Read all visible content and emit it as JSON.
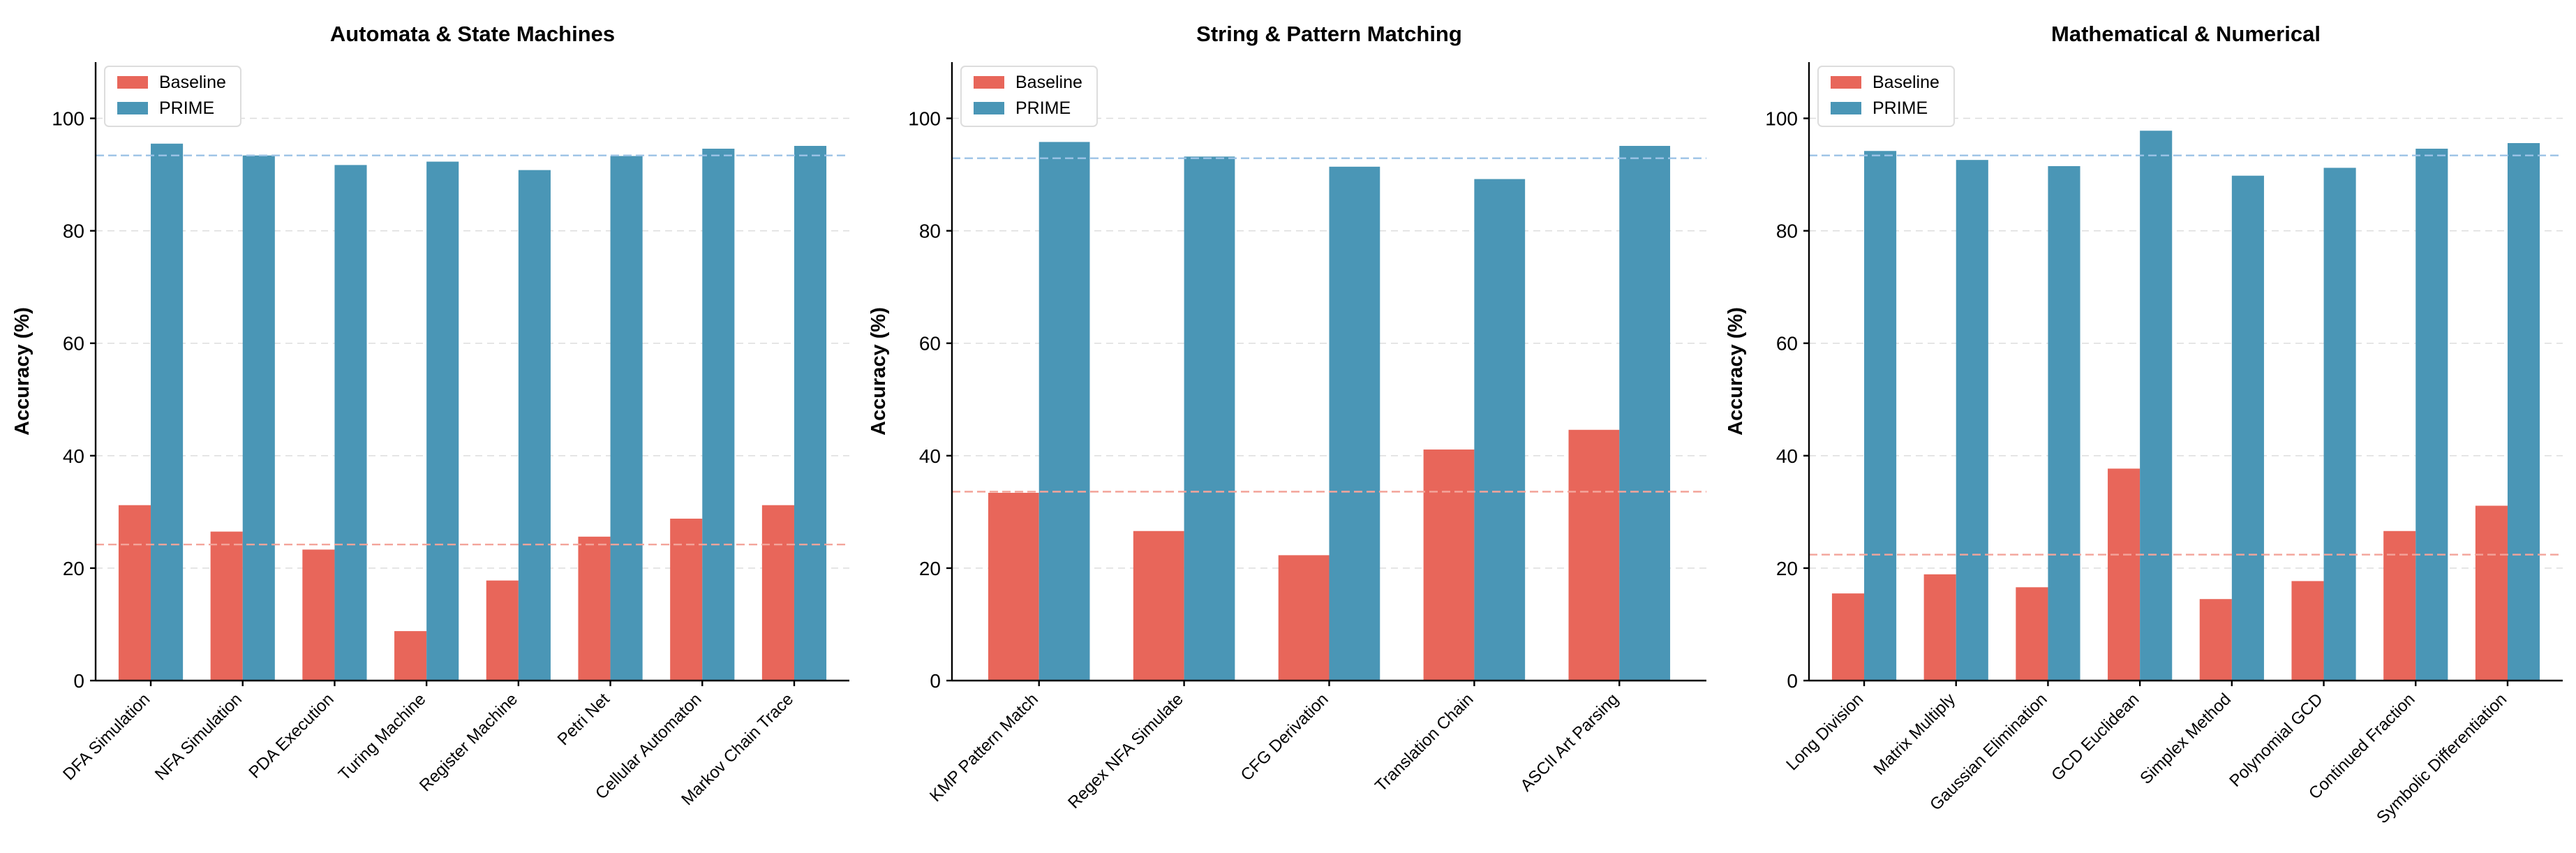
{
  "colors": {
    "baseline": "#e8665a",
    "prime": "#4a96b6",
    "baseline_ref": "#f3a49a",
    "prime_ref": "#9cc3e6"
  },
  "chart_data": [
    {
      "type": "bar",
      "title": "Automata & State Machines",
      "ylabel": "Accuracy (%)",
      "xlabel": "",
      "ylim": [
        0,
        110
      ],
      "yticks": [
        0,
        20,
        40,
        60,
        80,
        100
      ],
      "grid": true,
      "legend": "top-left",
      "categories": [
        "DFA Simulation",
        "NFA Simulation",
        "PDA Execution",
        "Turing Machine",
        "Register Machine",
        "Petri Net",
        "Cellular Automaton",
        "Markov Chain Trace"
      ],
      "series": [
        {
          "name": "Baseline",
          "values": [
            31.2,
            26.5,
            23.3,
            8.8,
            17.8,
            25.6,
            28.8,
            31.2
          ]
        },
        {
          "name": "PRIME",
          "values": [
            95.5,
            93.4,
            91.7,
            92.3,
            90.8,
            93.3,
            94.6,
            95.1
          ]
        }
      ],
      "reference_lines": {
        "Baseline": 24.2,
        "PRIME": 93.4
      }
    },
    {
      "type": "bar",
      "title": "String & Pattern Matching",
      "ylabel": "Accuracy (%)",
      "xlabel": "",
      "ylim": [
        0,
        110
      ],
      "yticks": [
        0,
        20,
        40,
        60,
        80,
        100
      ],
      "grid": true,
      "legend": "top-left",
      "categories": [
        "KMP Pattern Match",
        "Regex NFA Simulate",
        "CFG Derivation",
        "Translation Chain",
        "ASCII Art Parsing"
      ],
      "series": [
        {
          "name": "Baseline",
          "values": [
            33.4,
            26.6,
            22.3,
            41.1,
            44.6
          ]
        },
        {
          "name": "PRIME",
          "values": [
            95.8,
            93.2,
            91.4,
            89.2,
            95.1
          ]
        }
      ],
      "reference_lines": {
        "Baseline": 33.6,
        "PRIME": 92.9
      }
    },
    {
      "type": "bar",
      "title": "Mathematical & Numerical",
      "ylabel": "Accuracy (%)",
      "xlabel": "",
      "ylim": [
        0,
        110
      ],
      "yticks": [
        0,
        20,
        40,
        60,
        80,
        100
      ],
      "grid": true,
      "legend": "top-left",
      "categories": [
        "Long Division",
        "Matrix Multiply",
        "Gaussian Elimination",
        "GCD Euclidean",
        "Simplex Method",
        "Polynomial GCD",
        "Continued Fraction",
        "Symbolic Differentiation"
      ],
      "series": [
        {
          "name": "Baseline",
          "values": [
            15.5,
            18.9,
            16.6,
            37.7,
            14.5,
            17.7,
            26.6,
            31.1
          ]
        },
        {
          "name": "PRIME",
          "values": [
            94.2,
            92.6,
            91.5,
            97.8,
            89.8,
            91.2,
            94.6,
            95.6
          ]
        }
      ],
      "reference_lines": {
        "Baseline": 22.4,
        "PRIME": 93.4
      }
    }
  ]
}
